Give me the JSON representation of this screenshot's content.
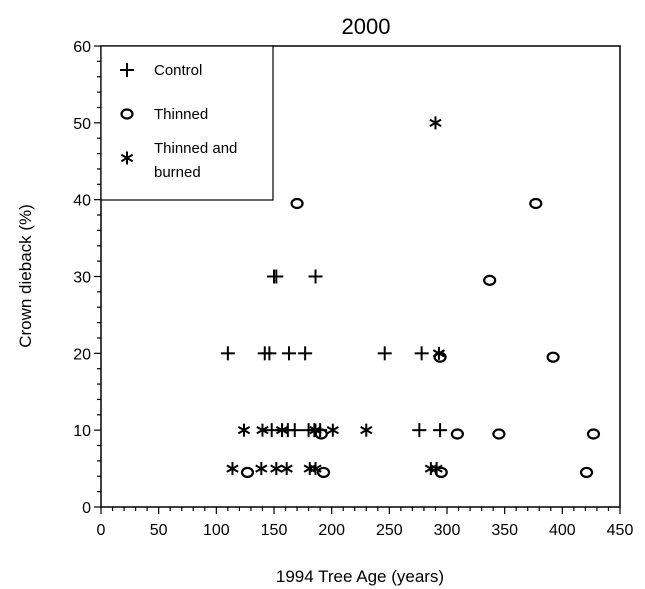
{
  "chart_data": {
    "type": "scatter",
    "title": "2000",
    "xlabel": "1994 Tree Age (years)",
    "ylabel": "Crown dieback (%)",
    "xlim": [
      0,
      450
    ],
    "ylim": [
      0,
      60
    ],
    "xticks": [
      "0",
      "50",
      "100",
      "150",
      "200",
      "250",
      "300",
      "350",
      "400",
      "450"
    ],
    "yticks": [
      "0",
      "10",
      "20",
      "30",
      "40",
      "50",
      "60"
    ],
    "grid": false,
    "legend_position": "top-left",
    "series": [
      {
        "name": "Control",
        "marker": "plus",
        "points": [
          [
            150,
            30
          ],
          [
            152,
            30
          ],
          [
            186,
            30
          ],
          [
            110,
            20
          ],
          [
            142,
            20
          ],
          [
            146,
            20
          ],
          [
            163,
            20
          ],
          [
            177,
            20
          ],
          [
            246,
            20
          ],
          [
            278,
            20
          ],
          [
            148,
            10
          ],
          [
            157,
            10
          ],
          [
            162,
            10
          ],
          [
            168,
            10
          ],
          [
            180,
            10
          ],
          [
            185,
            10
          ],
          [
            190,
            10
          ],
          [
            276,
            10
          ],
          [
            294,
            10
          ]
        ]
      },
      {
        "name": "Thinned",
        "marker": "circle",
        "points": [
          [
            170,
            39.5
          ],
          [
            377,
            39.5
          ],
          [
            337,
            29.5
          ],
          [
            294,
            19.5
          ],
          [
            392,
            19.5
          ],
          [
            191,
            9.5
          ],
          [
            309,
            9.5
          ],
          [
            345,
            9.5
          ],
          [
            427,
            9.5
          ],
          [
            127,
            4.5
          ],
          [
            193,
            4.5
          ],
          [
            295,
            4.5
          ],
          [
            421,
            4.5
          ]
        ]
      },
      {
        "name": "Thinned and burned",
        "marker": "star",
        "points": [
          [
            290,
            50
          ],
          [
            293,
            20
          ],
          [
            124,
            10
          ],
          [
            140,
            10
          ],
          [
            157,
            10
          ],
          [
            186,
            10
          ],
          [
            201,
            10
          ],
          [
            230,
            10
          ],
          [
            114,
            5
          ],
          [
            139,
            5
          ],
          [
            152,
            5
          ],
          [
            161,
            5
          ],
          [
            181,
            5
          ],
          [
            186,
            5
          ],
          [
            286,
            5
          ],
          [
            291,
            5
          ]
        ]
      }
    ]
  }
}
